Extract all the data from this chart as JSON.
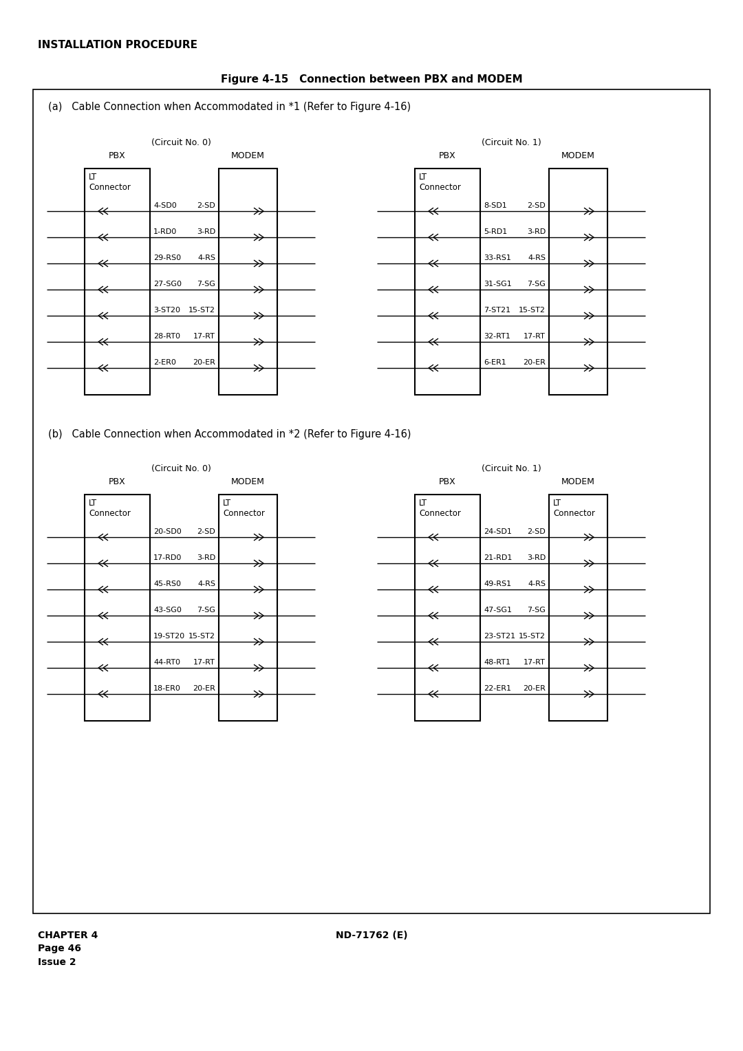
{
  "page_title": "INSTALLATION PROCEDURE",
  "figure_title": "Figure 4-15   Connection between PBX and MODEM",
  "section_a_title": "(a)   Cable Connection when Accommodated in *1 (Refer to Figure 4-16)",
  "section_b_title": "(b)   Cable Connection when Accommodated in *2 (Refer to Figure 4-16)",
  "footer_left": "CHAPTER 4\nPage 46\nIssue 2",
  "footer_center": "ND-71762 (E)",
  "diagrams": {
    "section_a": {
      "circuit0": {
        "circuit_label": "(Circuit No. 0)",
        "pbx_label": "PBX",
        "modem_label": "MODEM",
        "pbx_box_label": "LT\nConnector",
        "modem_box_label": null,
        "signals": [
          {
            "pbx": "4-SD0",
            "modem": "2-SD"
          },
          {
            "pbx": "1-RD0",
            "modem": "3-RD"
          },
          {
            "pbx": "29-RS0",
            "modem": "4-RS"
          },
          {
            "pbx": "27-SG0",
            "modem": "7-SG"
          },
          {
            "pbx": "3-ST20",
            "modem": "15-ST2"
          },
          {
            "pbx": "28-RT0",
            "modem": "17-RT"
          },
          {
            "pbx": "2-ER0",
            "modem": "20-ER"
          }
        ]
      },
      "circuit1": {
        "circuit_label": "(Circuit No. 1)",
        "pbx_label": "PBX",
        "modem_label": "MODEM",
        "pbx_box_label": "LT\nConnector",
        "modem_box_label": null,
        "signals": [
          {
            "pbx": "8-SD1",
            "modem": "2-SD"
          },
          {
            "pbx": "5-RD1",
            "modem": "3-RD"
          },
          {
            "pbx": "33-RS1",
            "modem": "4-RS"
          },
          {
            "pbx": "31-SG1",
            "modem": "7-SG"
          },
          {
            "pbx": "7-ST21",
            "modem": "15-ST2"
          },
          {
            "pbx": "32-RT1",
            "modem": "17-RT"
          },
          {
            "pbx": "6-ER1",
            "modem": "20-ER"
          }
        ]
      }
    },
    "section_b": {
      "circuit0": {
        "circuit_label": "(Circuit No. 0)",
        "pbx_label": "PBX",
        "modem_label": "MODEM",
        "pbx_box_label": "LT\nConnector",
        "modem_box_label": "LT\nConnector",
        "signals": [
          {
            "pbx": "20-SD0",
            "modem": "2-SD"
          },
          {
            "pbx": "17-RD0",
            "modem": "3-RD"
          },
          {
            "pbx": "45-RS0",
            "modem": "4-RS"
          },
          {
            "pbx": "43-SG0",
            "modem": "7-SG"
          },
          {
            "pbx": "19-ST20",
            "modem": "15-ST2"
          },
          {
            "pbx": "44-RT0",
            "modem": "17-RT"
          },
          {
            "pbx": "18-ER0",
            "modem": "20-ER"
          }
        ]
      },
      "circuit1": {
        "circuit_label": "(Circuit No. 1)",
        "pbx_label": "PBX",
        "modem_label": "MODEM",
        "pbx_box_label": "LT\nConnector",
        "modem_box_label": "LT\nConnector",
        "signals": [
          {
            "pbx": "24-SD1",
            "modem": "2-SD"
          },
          {
            "pbx": "21-RD1",
            "modem": "3-RD"
          },
          {
            "pbx": "49-RS1",
            "modem": "4-RS"
          },
          {
            "pbx": "47-SG1",
            "modem": "7-SG"
          },
          {
            "pbx": "23-ST21",
            "modem": "15-ST2"
          },
          {
            "pbx": "48-RT1",
            "modem": "17-RT"
          },
          {
            "pbx": "22-ER1",
            "modem": "20-ER"
          }
        ]
      }
    }
  }
}
